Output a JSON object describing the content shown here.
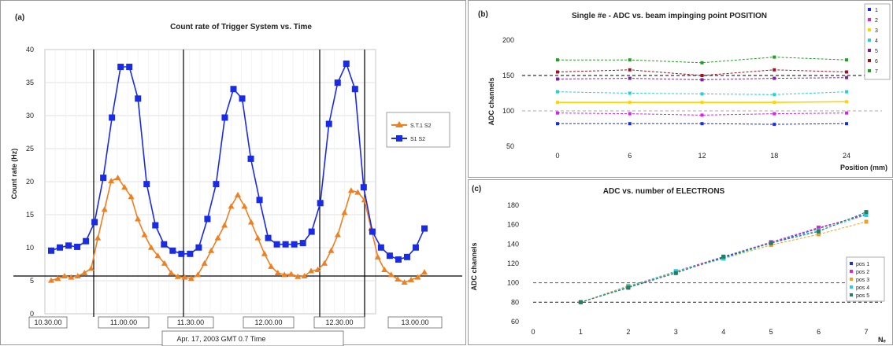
{
  "panel_a": {
    "label": "(a)",
    "title": "Count rate of Trigger System vs. Time",
    "ylabel": "Count rate (Hz)",
    "date_label": "Apr. 17, 2003 GMT 0.7 Time",
    "legend": [
      "S.T.1 S2",
      "S1 S2"
    ],
    "yticks": [
      "0",
      "5",
      "10",
      "15",
      "20",
      "25",
      "30",
      "35",
      "40"
    ],
    "xticks": [
      "10.30.00",
      "11.00.00",
      "11.30.00",
      "12.00.00",
      "12.30.00",
      "13.00.00"
    ]
  },
  "panel_b": {
    "label": "(b)",
    "title": "Single #e - ADC vs. beam impinging point POSITION",
    "ylabel": "ADC channels",
    "xlabel": "Position (mm)",
    "yticks": [
      "50",
      "100",
      "150",
      "200"
    ],
    "xticks": [
      "0",
      "6",
      "12",
      "18",
      "24"
    ],
    "legend": [
      "1",
      "2",
      "3",
      "4",
      "5",
      "6",
      "7"
    ]
  },
  "panel_c": {
    "label": "(c)",
    "title": "ADC vs. number of ELECTRONS",
    "ylabel": "ADC channels",
    "xlabel": "Nₑ",
    "yticks": [
      "60",
      "80",
      "100",
      "120",
      "140",
      "160",
      "180"
    ],
    "xticks": [
      "0",
      "1",
      "2",
      "3",
      "4",
      "5",
      "6",
      "7"
    ],
    "legend": [
      "pos 1",
      "pos 2",
      "pos 3",
      "pos 4",
      "pos 5"
    ]
  },
  "chart_data": [
    {
      "type": "line",
      "title": "Count rate of Trigger System vs. Time",
      "ylabel": "Count rate (Hz)",
      "ylim": [
        0,
        40
      ],
      "grid": true,
      "legend_position": "right",
      "colors": [
        "#f07f20",
        "#1a2be8"
      ],
      "series": [
        {
          "name": "S.T.1 S2",
          "values": [
            3.3,
            3.6,
            4.0,
            3.8,
            4.0,
            4.5,
            5.2,
            10,
            14.5,
            19,
            19.5,
            18,
            16.5,
            13,
            10.5,
            8.5,
            7.2,
            6.0,
            4.5,
            3.9,
            3.8,
            3.6,
            4.2,
            6.0,
            8.0,
            10,
            12,
            15,
            16.8,
            15,
            12.5,
            10,
            7.5,
            5.5,
            4.5,
            4.2,
            4.3,
            3.9,
            4.0,
            4.8,
            5.0,
            6.0,
            8.0,
            10.5,
            14,
            17.5,
            17.2,
            16,
            11.5,
            7.0,
            5.0,
            4.2,
            3.5,
            3.0,
            3.4,
            3.8,
            4.6
          ]
        },
        {
          "name": "S1 S2",
          "values": [
            8,
            8.5,
            8.8,
            8.6,
            9.5,
            12.5,
            19.5,
            29,
            37,
            37,
            32,
            18.5,
            12,
            9.0,
            8.0,
            7.5,
            7.5,
            8.5,
            13,
            18.5,
            29,
            33.5,
            32,
            22.5,
            16,
            10,
            9.0,
            9.0,
            9.0,
            9.2,
            11,
            15.5,
            28,
            34.5,
            37.5,
            33.5,
            18,
            11,
            8.5,
            7.2,
            6.6,
            7.0,
            8.5,
            11.5
          ]
        }
      ],
      "x_ticks": [
        "10.30.00",
        "11.00.00",
        "11.30.00",
        "12.00.00",
        "12.30.00",
        "13.00.00"
      ]
    },
    {
      "type": "scatter",
      "title": "Single #e - ADC vs. beam impinging point POSITION",
      "xlabel": "Position (mm)",
      "ylabel": "ADC channels",
      "xlim": [
        0,
        24
      ],
      "ylim": [
        50,
        200
      ],
      "x": [
        0,
        6,
        12,
        18,
        24
      ],
      "series": [
        {
          "name": "1",
          "color": "#1a2be8",
          "values": [
            82,
            82,
            82,
            81,
            82
          ]
        },
        {
          "name": "2",
          "color": "#e020e0",
          "values": [
            97,
            96,
            94,
            96,
            97
          ]
        },
        {
          "name": "3",
          "color": "#ffd400",
          "values": [
            112,
            112,
            112,
            112,
            113
          ]
        },
        {
          "name": "4",
          "color": "#20d0e0",
          "values": [
            127,
            125,
            124,
            123,
            127
          ]
        },
        {
          "name": "5",
          "color": "#8020a0",
          "values": [
            145,
            146,
            144,
            146,
            147
          ]
        },
        {
          "name": "6",
          "color": "#a01020",
          "values": [
            155,
            158,
            150,
            158,
            155
          ]
        },
        {
          "name": "7",
          "color": "#20a020",
          "values": [
            172,
            172,
            168,
            176,
            172
          ]
        }
      ],
      "ref_lines": [
        100,
        150
      ]
    },
    {
      "type": "scatter",
      "title": "ADC vs. number of ELECTRONS",
      "xlabel": "Nₑ",
      "ylabel": "ADC channels",
      "xlim": [
        0,
        7
      ],
      "ylim": [
        60,
        180
      ],
      "x": [
        1,
        2,
        3,
        4,
        5,
        6,
        7
      ],
      "series": [
        {
          "name": "pos 1",
          "color": "#1a2be8",
          "values": [
            80,
            96,
            111,
            126,
            141,
            156,
            171
          ]
        },
        {
          "name": "pos 2",
          "color": "#e020e0",
          "values": [
            80,
            95,
            112,
            127,
            142,
            157,
            170
          ]
        },
        {
          "name": "pos 3",
          "color": "#f0a020",
          "values": [
            80,
            97,
            111,
            125,
            139,
            150,
            163
          ]
        },
        {
          "name": "pos 4",
          "color": "#20d0e0",
          "values": [
            80,
            96,
            112,
            125,
            141,
            154,
            170
          ]
        },
        {
          "name": "pos 5",
          "color": "#208060",
          "values": [
            80,
            95,
            110,
            127,
            141,
            153,
            173
          ]
        }
      ],
      "ref_lines": [
        80,
        100
      ]
    }
  ]
}
